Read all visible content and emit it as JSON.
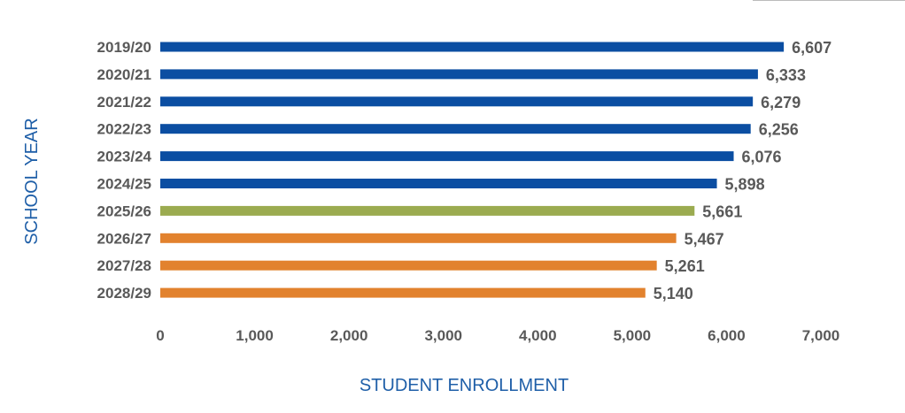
{
  "chart_data": {
    "type": "bar",
    "orientation": "horizontal",
    "title": "",
    "xlabel": "STUDENT ENROLLMENT",
    "ylabel": "SCHOOL YEAR",
    "categories": [
      "2019/20",
      "2020/21",
      "2021/22",
      "2022/23",
      "2023/24",
      "2024/25",
      "2025/26",
      "2026/27",
      "2027/28",
      "2028/29"
    ],
    "values": [
      6607,
      6333,
      6279,
      6256,
      6076,
      5898,
      5661,
      5467,
      5261,
      5140
    ],
    "value_labels": [
      "6,607",
      "6,333",
      "6,279",
      "6,256",
      "6,076",
      "5,898",
      "5,661",
      "5,467",
      "5,261",
      "5,140"
    ],
    "bar_groups": [
      "actual",
      "actual",
      "actual",
      "actual",
      "actual",
      "actual",
      "current",
      "projected",
      "projected",
      "projected"
    ],
    "colors": {
      "actual": "#0b4ea2",
      "current": "#9bab50",
      "projected": "#e2822e",
      "axis_title": "#1f5fa8",
      "text": "#595959"
    },
    "xlim": [
      0,
      7000
    ],
    "xticks": [
      0,
      1000,
      2000,
      3000,
      4000,
      5000,
      6000,
      7000
    ],
    "xtick_labels": [
      "0",
      "1,000",
      "2,000",
      "3,000",
      "4,000",
      "5,000",
      "6,000",
      "7,000"
    ],
    "grid": false
  }
}
